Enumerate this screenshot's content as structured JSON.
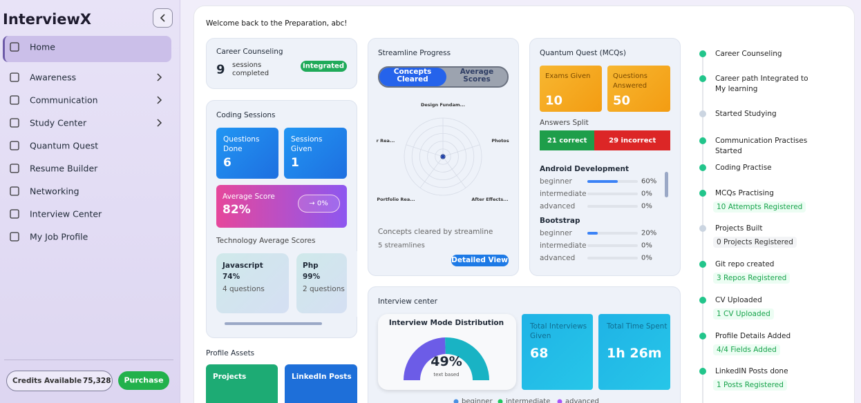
{
  "sidebar": {
    "brand": "InterviewX",
    "nav": [
      {
        "label": "Home",
        "active": true,
        "expandable": false
      },
      {
        "label": "Awareness",
        "active": false,
        "expandable": true
      },
      {
        "label": "Communication",
        "active": false,
        "expandable": true
      },
      {
        "label": "Study Center",
        "active": false,
        "expandable": true
      },
      {
        "label": "Quantum Quest",
        "active": false,
        "expandable": false
      },
      {
        "label": "Resume Builder",
        "active": false,
        "expandable": false
      },
      {
        "label": "Networking",
        "active": false,
        "expandable": false
      },
      {
        "label": "Interview Center",
        "active": false,
        "expandable": false
      },
      {
        "label": "My Job Profile",
        "active": false,
        "expandable": false
      }
    ],
    "credits_label": "Credits Available",
    "credits": "75,328",
    "purchase": "Purchase"
  },
  "welcome": "Welcome back to the Preparation, abc!",
  "career": {
    "title": "Career Counseling",
    "count": "9",
    "sub": "sessions completed",
    "badge": "Integrated"
  },
  "coding": {
    "title": "Coding Sessions",
    "tiles": [
      {
        "label": "Questions Done",
        "value": "6"
      },
      {
        "label": "Sessions Given",
        "value": "1"
      }
    ],
    "avg_label": "Average Score",
    "avg": "82%",
    "delta": "→ 0%",
    "tech_title": "Technology Average Scores",
    "tech": [
      {
        "name": "Javascript",
        "score": "74%",
        "count": "4 questions"
      },
      {
        "name": "Php",
        "score": "99%",
        "count": "2 questions"
      }
    ]
  },
  "assets": {
    "title": "Profile Assets",
    "items": [
      "Projects",
      "LinkedIn Posts"
    ]
  },
  "streamline": {
    "title": "Streamline Progress",
    "tabs": [
      "Concepts Cleared",
      "Average Scores"
    ],
    "radar": {
      "labels": [
        "Design Fundam...",
        "Photos",
        "After Effects...",
        "Portfolio Rea...",
        "r Rea..."
      ],
      "values": [
        0,
        0,
        0,
        0,
        0
      ],
      "max": 10
    },
    "caption": "Concepts cleared by streamline",
    "count": "5 streamlines",
    "button": "Detailed View"
  },
  "quest": {
    "title": "Quantum Quest (MCQs)",
    "tiles": [
      {
        "label": "Exams Given",
        "value": "10"
      },
      {
        "label": "Questions Answered",
        "value": "50"
      }
    ],
    "split_title": "Answers Split",
    "correct": {
      "value": 21,
      "label": "21 correct"
    },
    "incorrect": {
      "value": 29,
      "label": "29 incorrect"
    },
    "topics": [
      {
        "name": "Android Development",
        "levels": [
          {
            "name": "beginner",
            "value": 60,
            "label": "60%"
          },
          {
            "name": "intermediate",
            "value": 0,
            "label": "0%"
          },
          {
            "name": "advanced",
            "value": 0,
            "label": "0%"
          }
        ]
      },
      {
        "name": "Bootstrap",
        "levels": [
          {
            "name": "beginner",
            "value": 20,
            "label": "20%"
          },
          {
            "name": "intermediate",
            "value": 0,
            "label": "0%"
          },
          {
            "name": "advanced",
            "value": 0,
            "label": "0%"
          }
        ]
      }
    ]
  },
  "interview": {
    "title": "Interview center",
    "chart_title": "Interview Mode Distribution",
    "gauge": {
      "value": 49,
      "label": "49%"
    },
    "gauge_sub": "text based",
    "legend": [
      {
        "name": "beginner",
        "color": "#4a90e2"
      },
      {
        "name": "intermediate",
        "color": "#22c55e"
      },
      {
        "name": "advanced",
        "color": "#a855f7"
      }
    ],
    "stats": [
      {
        "label": "Total Interviews Given",
        "value": "68"
      },
      {
        "label": "Total Time Spent",
        "value": "1h 26m"
      }
    ]
  },
  "timeline": [
    {
      "title": "Career Counseling",
      "done": true
    },
    {
      "title": "Career path Integrated to My learning",
      "done": true
    },
    {
      "title": "Started Studying",
      "done": false
    },
    {
      "title": "Communication Practises Started",
      "done": true
    },
    {
      "title": "Coding Practise",
      "done": true
    },
    {
      "title": "MCQs Practising",
      "detail": "10 Attempts Registered",
      "done": true
    },
    {
      "title": "Projects Built",
      "detail": "0 Projects Registered",
      "done": false
    },
    {
      "title": "Git repo created",
      "detail": "3 Repos Registered",
      "done": true
    },
    {
      "title": "CV Uploaded",
      "detail": "1 CV Uploaded",
      "done": true
    },
    {
      "title": "Profile Details Added",
      "detail": "4/4 Fields Added",
      "done": true
    },
    {
      "title": "LinkedIN Posts done",
      "detail": "1 Posts Registered",
      "done": true
    }
  ]
}
